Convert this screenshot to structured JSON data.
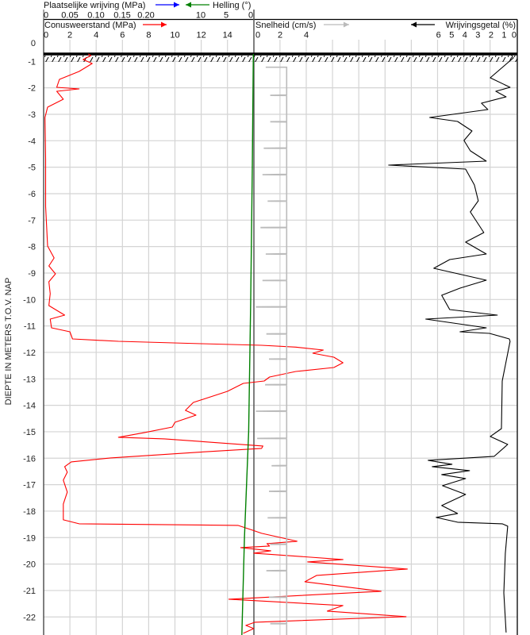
{
  "chart_data": {
    "type": "line",
    "ylabel": "DIEPTE IN METERS T.O.V.  NAP",
    "ylim": [
      0,
      -22.7
    ],
    "y_ticks": [
      "0",
      "-1",
      "-2",
      "-3",
      "-4",
      "-5",
      "-6",
      "-7",
      "-8",
      "-9",
      "-10",
      "-11",
      "-12",
      "-13",
      "-14",
      "-15",
      "-16",
      "-17",
      "-18",
      "-19",
      "-20",
      "-21",
      "-22"
    ],
    "ground_level": -0.72,
    "grid": true,
    "axes": {
      "plaatselijke_wrijving": {
        "label": "Plaatselijke wrijving (MPa)",
        "ticks": [
          "0",
          "0.05",
          "0.10",
          "0.15",
          "0.20"
        ],
        "direction": "right",
        "color": "#0000ff"
      },
      "helling": {
        "label": "Helling (°)",
        "ticks": [
          "10",
          "5",
          "0"
        ],
        "direction": "left",
        "color": "#008000"
      },
      "conusweerstand": {
        "label": "Conusweerstand (MPa)",
        "ticks": [
          "0",
          "2",
          "4",
          "6",
          "8",
          "10",
          "12",
          "14"
        ],
        "direction": "right",
        "color": "#ff0000"
      },
      "snelheid": {
        "label": "Snelheid (cm/s)",
        "ticks": [
          "0",
          "2",
          "4"
        ],
        "direction": "right",
        "color": "#bbbbbb"
      },
      "wrijvingsgetal": {
        "label": "Wrijvingsgetal (%)",
        "ticks": [
          "6",
          "5",
          "4",
          "3",
          "2",
          "1",
          "0"
        ],
        "direction": "left",
        "color": "#000000"
      }
    },
    "series": [
      {
        "axis": "conusweerstand",
        "color": "#ff0000",
        "points": [
          [
            -0.72,
            3.4
          ],
          [
            -0.78,
            3.6
          ],
          [
            -0.93,
            3.0
          ],
          [
            -1.08,
            3.7
          ],
          [
            -1.38,
            2.7
          ],
          [
            -1.68,
            1.2
          ],
          [
            -1.98,
            1.0
          ],
          [
            -2.04,
            2.7
          ],
          [
            -2.13,
            1.0
          ],
          [
            -2.43,
            1.5
          ],
          [
            -2.73,
            0.3
          ],
          [
            -3.12,
            0.1
          ],
          [
            -4.68,
            0.15
          ],
          [
            -6.48,
            0.15
          ],
          [
            -7.98,
            0.3
          ],
          [
            -8.43,
            0.8
          ],
          [
            -8.73,
            0.4
          ],
          [
            -9.03,
            0.9
          ],
          [
            -9.33,
            0.4
          ],
          [
            -9.78,
            0.5
          ],
          [
            -10.23,
            0.4
          ],
          [
            -10.59,
            1.6
          ],
          [
            -10.74,
            0.5
          ],
          [
            -11.07,
            0.6
          ],
          [
            -11.22,
            2.0
          ],
          [
            -11.49,
            2.2
          ],
          [
            -11.58,
            5.7
          ],
          [
            -11.67,
            12.0
          ],
          [
            -11.73,
            16.6
          ],
          [
            -11.8,
            19.2
          ],
          [
            -11.91,
            21.3
          ],
          [
            -12.03,
            20.5
          ],
          [
            -12.18,
            22.1
          ],
          [
            -12.39,
            22.8
          ],
          [
            -12.57,
            22.1
          ],
          [
            -12.72,
            19.2
          ],
          [
            -12.93,
            17.2
          ],
          [
            -13.08,
            16.8
          ],
          [
            -13.17,
            15.2
          ],
          [
            -13.47,
            14.0
          ],
          [
            -13.89,
            11.4
          ],
          [
            -14.19,
            10.8
          ],
          [
            -14.37,
            11.6
          ],
          [
            -14.64,
            10.0
          ],
          [
            -14.82,
            9.8
          ],
          [
            -15.03,
            7.7
          ],
          [
            -15.21,
            5.7
          ],
          [
            -15.27,
            9.2
          ],
          [
            -15.54,
            16.7
          ],
          [
            -15.63,
            16.6
          ],
          [
            -15.78,
            11.6
          ],
          [
            -15.99,
            5.1
          ],
          [
            -16.14,
            2.1
          ],
          [
            -16.32,
            1.6
          ],
          [
            -16.53,
            1.8
          ],
          [
            -16.83,
            1.5
          ],
          [
            -17.28,
            1.8
          ],
          [
            -17.73,
            1.5
          ],
          [
            -18.33,
            1.5
          ],
          [
            -18.48,
            2.7
          ],
          [
            -18.54,
            14.8
          ],
          [
            -18.72,
            15.9
          ],
          [
            -18.84,
            16.6
          ],
          [
            -19.14,
            19.3
          ],
          [
            -19.23,
            17.0
          ],
          [
            -19.32,
            17.2
          ],
          [
            -19.38,
            15.0
          ],
          [
            -19.5,
            17.3
          ],
          [
            -19.59,
            16.0
          ],
          [
            -19.83,
            22.8
          ],
          [
            -19.92,
            20.1
          ],
          [
            -20.19,
            27.7
          ],
          [
            -20.43,
            20.8
          ],
          [
            -20.67,
            19.9
          ],
          [
            -21.03,
            25.7
          ],
          [
            -21.33,
            14.1
          ],
          [
            -21.57,
            22.8
          ],
          [
            -21.78,
            21.6
          ],
          [
            -21.99,
            27.6
          ],
          [
            -22.2,
            16.1
          ],
          [
            -22.32,
            15.4
          ],
          [
            -22.44,
            16.0
          ],
          [
            -22.62,
            15.2
          ]
        ]
      },
      {
        "axis": "wrijvingsgetal",
        "color": "#000000",
        "points": [
          [
            -0.72,
            0.5
          ],
          [
            -0.87,
            0.3
          ],
          [
            -1.62,
            2.06
          ],
          [
            -1.98,
            0.55
          ],
          [
            -2.13,
            1.64
          ],
          [
            -2.34,
            0.85
          ],
          [
            -2.58,
            2.73
          ],
          [
            -2.82,
            2.24
          ],
          [
            -3.12,
            6.67
          ],
          [
            -3.27,
            4.55
          ],
          [
            -3.63,
            3.45
          ],
          [
            -3.99,
            4.06
          ],
          [
            -4.38,
            3.58
          ],
          [
            -4.77,
            2.36
          ],
          [
            -4.92,
            9.8
          ],
          [
            -5.07,
            3.94
          ],
          [
            -5.67,
            3.27
          ],
          [
            -6.27,
            2.97
          ],
          [
            -6.69,
            3.58
          ],
          [
            -7.47,
            2.55
          ],
          [
            -7.83,
            3.94
          ],
          [
            -8.28,
            2.36
          ],
          [
            -8.49,
            5.15
          ],
          [
            -8.82,
            6.36
          ],
          [
            -9.27,
            2.36
          ],
          [
            -9.57,
            4.36
          ],
          [
            -9.84,
            5.76
          ],
          [
            -10.38,
            5.15
          ],
          [
            -10.59,
            1.52
          ],
          [
            -10.74,
            6.97
          ],
          [
            -11.07,
            2.36
          ],
          [
            -11.22,
            4.36
          ],
          [
            -11.28,
            2.12
          ],
          [
            -11.49,
            0.61
          ],
          [
            -11.58,
            0.55
          ],
          [
            -13.08,
            1.15
          ],
          [
            -14.88,
            1.21
          ],
          [
            -15.18,
            2.06
          ],
          [
            -15.48,
            0.73
          ],
          [
            -15.93,
            1.76
          ],
          [
            -16.08,
            6.79
          ],
          [
            -16.23,
            4.97
          ],
          [
            -16.32,
            6.48
          ],
          [
            -16.47,
            3.64
          ],
          [
            -16.62,
            5.76
          ],
          [
            -16.77,
            3.94
          ],
          [
            -17.04,
            5.7
          ],
          [
            -17.37,
            3.94
          ],
          [
            -17.79,
            5.76
          ],
          [
            -18.09,
            4.55
          ],
          [
            -18.24,
            6.18
          ],
          [
            -18.42,
            4.55
          ],
          [
            -18.48,
            1.15
          ],
          [
            -18.57,
            0.73
          ],
          [
            -19.59,
            0.91
          ],
          [
            -21.09,
            1.03
          ],
          [
            -22.59,
            0.85
          ]
        ]
      },
      {
        "axis": "helling",
        "color": "#008000",
        "points": [
          [
            -0.72,
            0.1
          ],
          [
            -5,
            0.3
          ],
          [
            -10,
            0.6
          ],
          [
            -15,
            1.0
          ],
          [
            -19,
            1.8
          ],
          [
            -22.7,
            2.3
          ]
        ]
      },
      {
        "axis": "snelheid",
        "color": "#bbbbbb",
        "base_value": 2.5,
        "start": [
          -1.22,
          0.9
        ],
        "dips": [
          [
            -2.28,
            1.3
          ],
          [
            -3.28,
            1.3
          ],
          [
            -4.28,
            0.8
          ],
          [
            -5.28,
            0.7
          ],
          [
            -6.28,
            1.1
          ],
          [
            -7.28,
            0.55
          ],
          [
            -8.28,
            0.95
          ],
          [
            -9.28,
            0.7
          ],
          [
            -10.28,
            0.2
          ],
          [
            -11.3,
            1.0
          ],
          [
            -12.25,
            1.2
          ],
          [
            -13.22,
            0.9
          ],
          [
            -14.22,
            0.2
          ],
          [
            -15.25,
            0.3
          ],
          [
            -16.28,
            1.4
          ],
          [
            -17.25,
            1.2
          ],
          [
            -18.25,
            1.1
          ],
          [
            -19.25,
            1.3
          ],
          [
            -20.25,
            1.0
          ],
          [
            -21.25,
            1.2
          ],
          [
            -22.25,
            1.3
          ]
        ]
      }
    ]
  }
}
